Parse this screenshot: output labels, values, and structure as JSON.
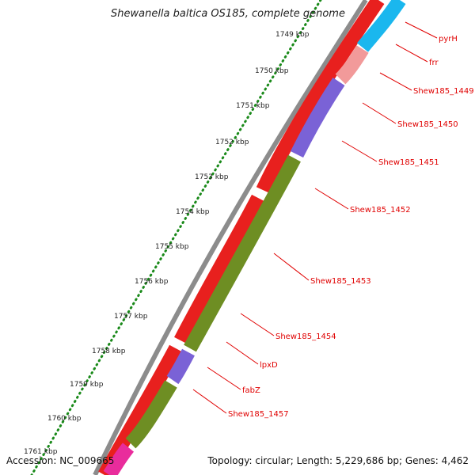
{
  "title": "Shewanella baltica OS185, complete genome",
  "footer": {
    "accession": "Accession: NC_009665",
    "summary": "Topology: circular; Length: 5,229,686 bp; Genes: 4,462"
  },
  "ruler": {
    "labels": [
      "1749 kbp",
      "1750 kbp",
      "1751 kbp",
      "1752 kbp",
      "1753 kbp",
      "1754 kbp",
      "1755 kbp",
      "1756 kbp",
      "1757 kbp",
      "1758 kbp",
      "1759 kbp",
      "1760 kbp",
      "1761 kbp"
    ]
  },
  "colors": {
    "outer_strand": "#f20f0f",
    "red": "#e8201e",
    "cyan": "#1ab7ee",
    "pink": "#f29a9a",
    "purple": "#7a62d6",
    "olive": "#6e8e23",
    "magenta": "#e92c9c",
    "label_red": "#e00000",
    "ruler_green": "#1a8a1a"
  },
  "genes": [
    {
      "name": "pyrH",
      "color": "cyan"
    },
    {
      "name": "frr",
      "color": "pink"
    },
    {
      "name": "Shew185_1449",
      "color": "purple"
    },
    {
      "name": "Shew185_1450",
      "color": "purple"
    },
    {
      "name": "Shew185_1451",
      "color": "purple"
    },
    {
      "name": "Shew185_1452",
      "color": "olive"
    },
    {
      "name": "Shew185_1453",
      "color": "olive"
    },
    {
      "name": "Shew185_1454",
      "color": "olive"
    },
    {
      "name": "lpxD",
      "color": "olive"
    },
    {
      "name": "fabZ",
      "color": "purple"
    },
    {
      "name": "Shew185_1457",
      "color": "olive"
    }
  ]
}
